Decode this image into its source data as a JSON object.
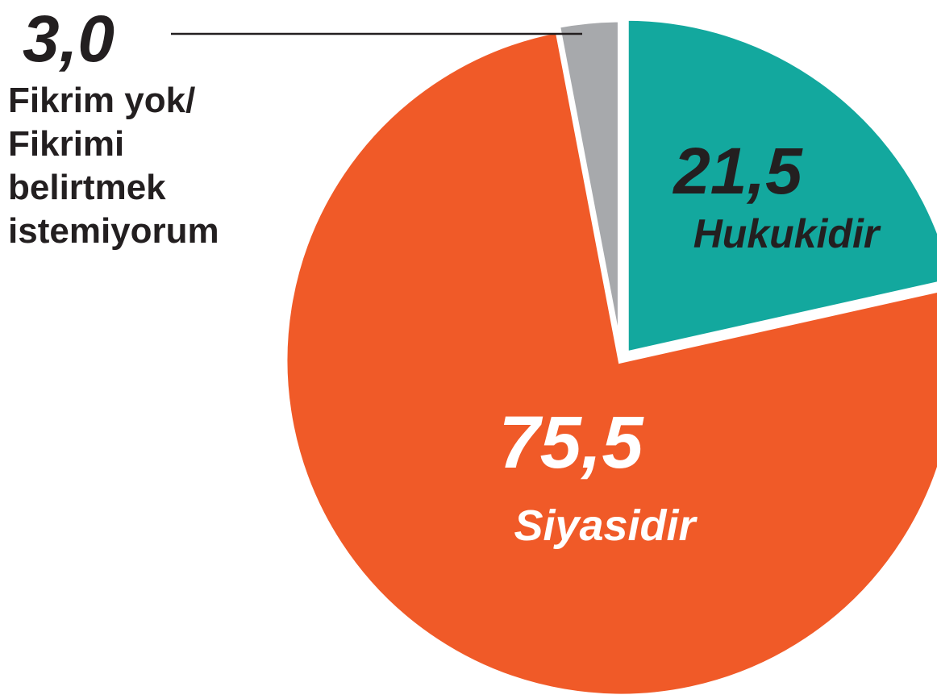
{
  "chart_data": {
    "type": "pie",
    "categories": [
      "Hukukidir",
      "Siyasidir",
      "Fikrim yok/ Fikrimi belirtmek istemiyorum"
    ],
    "values": [
      21.5,
      75.5,
      3.0
    ],
    "value_labels": [
      "21,5",
      "75,5",
      "3,0"
    ],
    "colors": [
      "#13a89e",
      "#f05a28",
      "#a7a9ac"
    ]
  }
}
